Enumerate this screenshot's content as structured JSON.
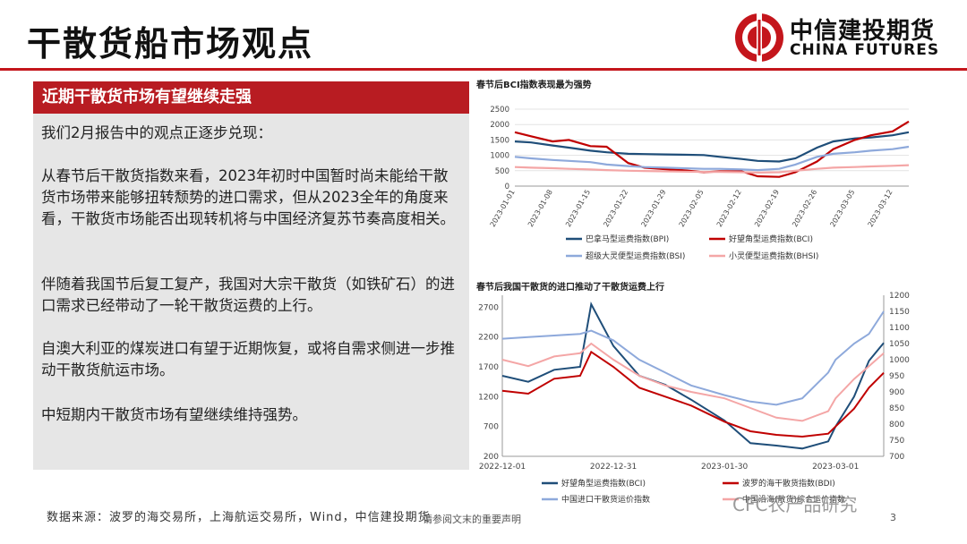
{
  "page": {
    "title": "干散货船市场观点",
    "brand_cn": "中信建投期货",
    "brand_en": "CHINA FUTURES",
    "accent": "#c4161c"
  },
  "left_panel": {
    "header": "近期干散货市场有望继续走强",
    "paragraphs": [
      "我们2月报告中的观点正逐步兑现：",
      "从春节后干散货指数来看，2023年初时中国暂时尚未能给干散货市场带来能够扭转颓势的进口需求，但从2023全年的角度来看，干散货市场能否出现转机将与中国经济复苏节奏高度相关。",
      "伴随着我国节后复工复产，我国对大宗干散货（如铁矿石）的进口需求已经带动了一轮干散货运费的上行。",
      "自澳大利亚的煤炭进口有望于近期恢复，或将自需求侧进一步推动干散货航运市场。",
      "中短期内干散货市场有望继续维持强势。"
    ]
  },
  "footer": {
    "source": "数据来源：波罗的海交易所，上海航运交易所，Wind，中信建投期货",
    "disclaimer": "请参阅文末的重要声明",
    "page_number": "3",
    "watermark": "CFC农产品研究"
  },
  "chart_data": [
    {
      "type": "line",
      "title": "春节后BCI指数表现最为强势",
      "x": [
        "2023-01-01",
        "2023-01-04",
        "2023-01-08",
        "2023-01-11",
        "2023-01-15",
        "2023-01-18",
        "2023-01-22",
        "2023-01-25",
        "2023-01-29",
        "2023-02-01",
        "2023-02-05",
        "2023-02-08",
        "2023-02-12",
        "2023-02-15",
        "2023-02-19",
        "2023-02-22",
        "2023-02-26",
        "2023-03-01",
        "2023-03-05",
        "2023-03-08",
        "2023-03-12",
        "2023-03-15"
      ],
      "x_ticks": [
        "2023-01-01",
        "2023-01-08",
        "2023-01-15",
        "2023-01-22",
        "2023-01-29",
        "2023-02-05",
        "2023-02-12",
        "2023-02-19",
        "2023-02-26",
        "2023-03-05",
        "2023-03-12"
      ],
      "ylim": [
        0,
        2500
      ],
      "y_ticks": [
        0,
        500,
        1000,
        1500,
        2000,
        2500
      ],
      "legend": "bottom",
      "series": [
        {
          "name": "巴拿马型运费指数(BPI)",
          "color": "#1f4e79",
          "values": [
            1450,
            1420,
            1320,
            1250,
            1150,
            1100,
            1050,
            1040,
            1030,
            1020,
            1010,
            950,
            880,
            820,
            800,
            900,
            1250,
            1450,
            1550,
            1580,
            1650,
            1750
          ]
        },
        {
          "name": "好望角型运费指数(BCI)",
          "color": "#c00000",
          "values": [
            1750,
            1620,
            1450,
            1500,
            1300,
            1280,
            750,
            600,
            550,
            520,
            450,
            480,
            480,
            320,
            300,
            450,
            800,
            1200,
            1500,
            1650,
            1780,
            2100
          ]
        },
        {
          "name": "超级大灵便型运费指数(BSI)",
          "color": "#8ea9db",
          "values": [
            950,
            900,
            850,
            820,
            780,
            700,
            650,
            620,
            600,
            580,
            560,
            560,
            540,
            520,
            560,
            700,
            950,
            1050,
            1100,
            1150,
            1200,
            1280
          ]
        },
        {
          "name": "小灵便型运费指数(BHSI)",
          "color": "#f4a6a6",
          "values": [
            620,
            600,
            580,
            560,
            540,
            520,
            500,
            490,
            480,
            470,
            460,
            460,
            450,
            440,
            450,
            500,
            560,
            600,
            620,
            640,
            660,
            680
          ]
        }
      ]
    },
    {
      "type": "line",
      "title": "春节后我国干散货的进口推动了干散货运费上行",
      "x": [
        "2022-12-01",
        "2022-12-08",
        "2022-12-15",
        "2022-12-22",
        "2022-12-25",
        "2022-12-31",
        "2023-01-07",
        "2023-01-14",
        "2023-01-21",
        "2023-01-30",
        "2023-02-06",
        "2023-02-13",
        "2023-02-20",
        "2023-02-27",
        "2023-03-01",
        "2023-03-06",
        "2023-03-10",
        "2023-03-14"
      ],
      "x_ticks": [
        "2022-12-01",
        "2022-12-31",
        "2023-01-30",
        "2023-03-01"
      ],
      "ylim_left": [
        200,
        2900
      ],
      "y_ticks_left": [
        200,
        700,
        1200,
        1700,
        2200,
        2700
      ],
      "ylim_right": [
        700,
        1200
      ],
      "y_ticks_right": [
        700,
        750,
        800,
        850,
        900,
        950,
        1000,
        1050,
        1100,
        1150,
        1200
      ],
      "legend": "bottom",
      "series": [
        {
          "name": "好望角型运费指数(BCI)",
          "color": "#1f4e79",
          "axis": "left",
          "values": [
            1550,
            1450,
            1650,
            1700,
            2750,
            2050,
            1550,
            1400,
            1150,
            800,
            420,
            380,
            330,
            450,
            700,
            1200,
            1800,
            2100
          ]
        },
        {
          "name": "波罗的海干散货指数(BDI)",
          "color": "#c00000",
          "axis": "left",
          "values": [
            1300,
            1250,
            1500,
            1550,
            1950,
            1700,
            1350,
            1200,
            1050,
            780,
            620,
            560,
            530,
            580,
            700,
            1000,
            1350,
            1600
          ]
        },
        {
          "name": "中国进口干散货运价指数",
          "color": "#8ea9db",
          "axis": "right",
          "values": [
            1065,
            1070,
            1075,
            1080,
            1090,
            1060,
            1000,
            960,
            920,
            890,
            870,
            860,
            880,
            960,
            1000,
            1050,
            1080,
            1150
          ]
        },
        {
          "name": "中国沿海(散货)综合运价指数",
          "color": "#f4a6a6",
          "axis": "right",
          "values": [
            1000,
            980,
            1010,
            1020,
            1050,
            1000,
            950,
            920,
            900,
            880,
            850,
            820,
            810,
            840,
            880,
            940,
            980,
            1020
          ]
        }
      ]
    }
  ]
}
